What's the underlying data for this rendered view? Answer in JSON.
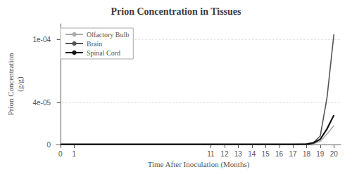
{
  "chart_data": {
    "type": "line",
    "title": "Prion Concentration in Tissues",
    "xlabel": "Time After Inoculation (Months)",
    "ylabel": "Prion Concentration\n(g/g)",
    "x": [
      0,
      1,
      11,
      12,
      13,
      14,
      15,
      16,
      17,
      18,
      18.5,
      19,
      19.5,
      20
    ],
    "series": [
      {
        "name": "Olfactory Bulb",
        "color": "#aaaaaa",
        "values": [
          2e-07,
          2e-07,
          2e-07,
          2e-07,
          2e-07,
          2e-07,
          2e-07,
          2e-07,
          2e-07,
          3e-07,
          8e-07,
          3e-06,
          1e-05,
          1.8e-05
        ]
      },
      {
        "name": "Brain",
        "color": "#555555",
        "values": [
          2e-07,
          2e-07,
          2e-07,
          2e-07,
          2e-07,
          2e-07,
          2e-07,
          2e-07,
          2e-07,
          4e-07,
          2e-06,
          8e-06,
          4.5e-05,
          0.000105
        ]
      },
      {
        "name": "Spinal Cord",
        "color": "#111111",
        "values": [
          2e-07,
          2e-07,
          2e-07,
          2e-07,
          2e-07,
          2e-07,
          2e-07,
          2e-07,
          2e-07,
          4e-07,
          1.5e-06,
          5e-06,
          1.5e-05,
          2.8e-05
        ]
      }
    ],
    "xlim": [
      -0.3,
      20.5
    ],
    "xticks": [
      0,
      1,
      11,
      12,
      13,
      14,
      15,
      16,
      17,
      18,
      19,
      20
    ],
    "ylim": [
      0,
      0.000115
    ],
    "yticks": [
      0,
      {
        "value": 4e-05,
        "label": "4e-05"
      },
      {
        "value": 0.0001,
        "label": "1e-04"
      }
    ],
    "grid": true,
    "legend": "upper left"
  }
}
